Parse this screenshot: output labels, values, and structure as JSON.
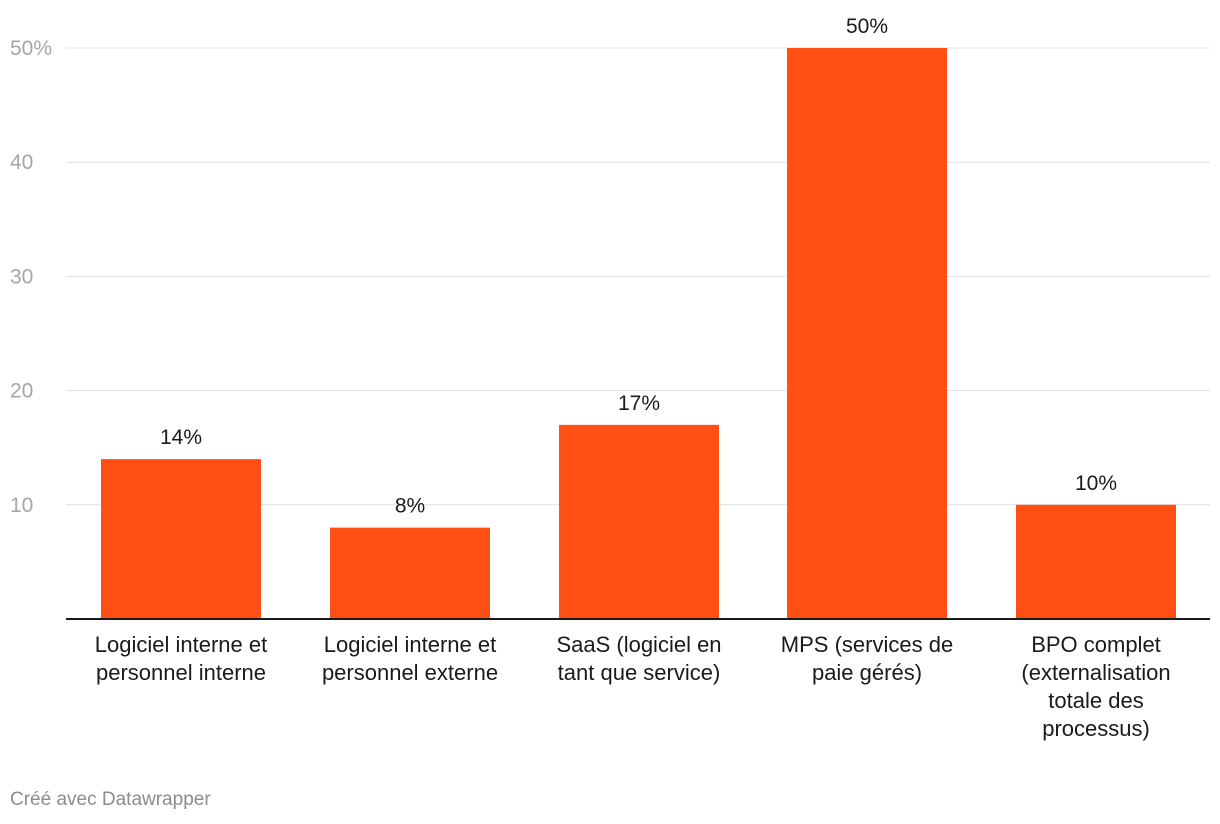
{
  "chart_data": {
    "type": "bar",
    "categories": [
      [
        "Logiciel interne et",
        "personnel interne"
      ],
      [
        "Logiciel interne et",
        "personnel externe"
      ],
      [
        "SaaS (logiciel en",
        "tant que service)"
      ],
      [
        "MPS (services de",
        "paie gérés)"
      ],
      [
        "BPO complet",
        "(externalisation",
        "totale des",
        "processus)"
      ]
    ],
    "values": [
      14,
      8,
      17,
      50,
      10
    ],
    "value_labels": [
      "14%",
      "8%",
      "17%",
      "50%",
      "10%"
    ],
    "y_ticks": [
      10,
      20,
      30,
      40,
      50
    ],
    "y_tick_labels": [
      "10",
      "20",
      "30",
      "40",
      "50%"
    ],
    "ylim": [
      0,
      50
    ],
    "grid": true,
    "bar_color": "#ff4f14"
  },
  "footer": {
    "credit": "Créé avec Datawrapper"
  }
}
